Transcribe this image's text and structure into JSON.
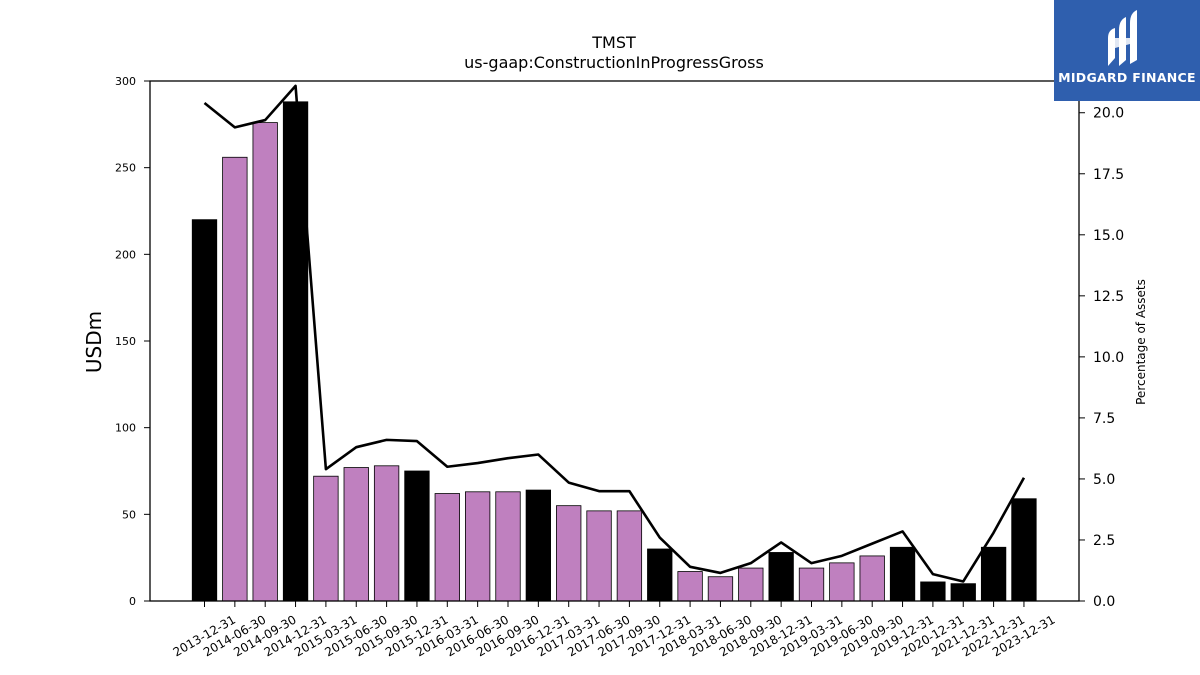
{
  "brand": {
    "logo_text": "MIDGARD FINANCE",
    "color": "#2f5fae"
  },
  "chart_data": {
    "type": "bar",
    "title": "TMST",
    "subtitle": "us-gaap:ConstructionInProgressGross",
    "ylabel": "USDm",
    "y2label": "Percentage of Assets",
    "ylim": [
      0,
      300
    ],
    "y2lim": [
      0,
      21.3
    ],
    "yticks": [
      "0",
      "50",
      "100",
      "150",
      "200",
      "250",
      "300"
    ],
    "y2ticks": [
      "0.0",
      "2.5",
      "5.0",
      "7.5",
      "10.0",
      "12.5",
      "15.0",
      "17.5",
      "20.0"
    ],
    "categories": [
      "2013-12-31",
      "2014-06-30",
      "2014-09-30",
      "2014-12-31",
      "2015-03-31",
      "2015-06-30",
      "2015-09-30",
      "2015-12-31",
      "2016-03-31",
      "2016-06-30",
      "2016-09-30",
      "2016-12-31",
      "2017-03-31",
      "2017-06-30",
      "2017-09-30",
      "2017-12-31",
      "2018-03-31",
      "2018-06-30",
      "2018-09-30",
      "2018-12-31",
      "2019-03-31",
      "2019-06-30",
      "2019-09-30",
      "2019-12-31",
      "2020-12-31",
      "2021-12-31",
      "2022-12-31",
      "2023-12-31"
    ],
    "series": [
      {
        "kind": "bar",
        "values": [
          220,
          256,
          276,
          288,
          72,
          77,
          78,
          75,
          62,
          63,
          63,
          64,
          55,
          52,
          52,
          30,
          17,
          14,
          19,
          28,
          19,
          22,
          26,
          31,
          11,
          10,
          31,
          59
        ],
        "annual": [
          true,
          false,
          false,
          true,
          false,
          false,
          false,
          true,
          false,
          false,
          false,
          true,
          false,
          false,
          false,
          true,
          false,
          false,
          false,
          true,
          false,
          false,
          false,
          true,
          true,
          true,
          true,
          true
        ],
        "annual_color": "#000000",
        "quarter_color": "#bf80bf"
      },
      {
        "kind": "line",
        "axis": "right",
        "values": [
          20.4,
          19.4,
          19.7,
          21.1,
          5.4,
          6.3,
          6.6,
          6.55,
          5.5,
          5.65,
          5.85,
          6.0,
          4.85,
          4.5,
          4.5,
          2.6,
          1.4,
          1.15,
          1.55,
          2.4,
          1.55,
          1.85,
          2.35,
          2.85,
          1.1,
          0.8,
          2.8,
          5.05
        ],
        "color": "#000000"
      }
    ]
  }
}
